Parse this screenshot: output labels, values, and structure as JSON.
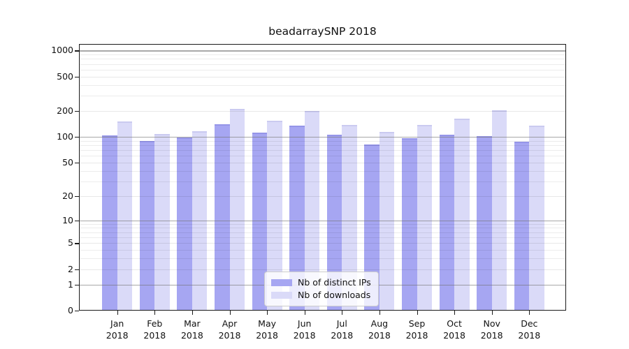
{
  "chart_data": {
    "type": "bar",
    "title": "beadarraySNP 2018",
    "categories": [
      "Jan",
      "Feb",
      "Mar",
      "Apr",
      "May",
      "Jun",
      "Jul",
      "Aug",
      "Sep",
      "Oct",
      "Nov",
      "Dec"
    ],
    "year_label": "2018",
    "series": [
      {
        "name": "Nb of distinct IPs",
        "color": "#a6a6f2",
        "edge_color": "#9595e8",
        "values": [
          104,
          90,
          99,
          141,
          113,
          134,
          105,
          82,
          96,
          105,
          102,
          88
        ]
      },
      {
        "name": "Nb of downloads",
        "color": "#dadaf8",
        "edge_color": "#cacaf0",
        "values": [
          151,
          107,
          117,
          212,
          154,
          201,
          137,
          114,
          138,
          163,
          202,
          136
        ]
      }
    ],
    "y_scale": "log10(1+y)",
    "ylim": [
      0,
      1230
    ],
    "y_ticks": [
      0,
      1,
      2,
      5,
      10,
      20,
      50,
      100,
      200,
      500,
      1000
    ],
    "y_minor_gridlines": [
      3,
      4,
      6,
      7,
      8,
      9,
      30,
      40,
      60,
      70,
      80,
      90,
      300,
      400,
      600,
      700,
      800,
      900
    ],
    "y_emphasized_gridlines": [
      1,
      10,
      100,
      1000
    ],
    "grid": "on",
    "legend_position": "lower center",
    "xlabel": "",
    "ylabel": ""
  },
  "colors": {
    "spine": "#1a1a1a",
    "legend_border": "#cccccc",
    "legend_background": "rgba(255,255,255,0.8)",
    "text": "#111111"
  }
}
